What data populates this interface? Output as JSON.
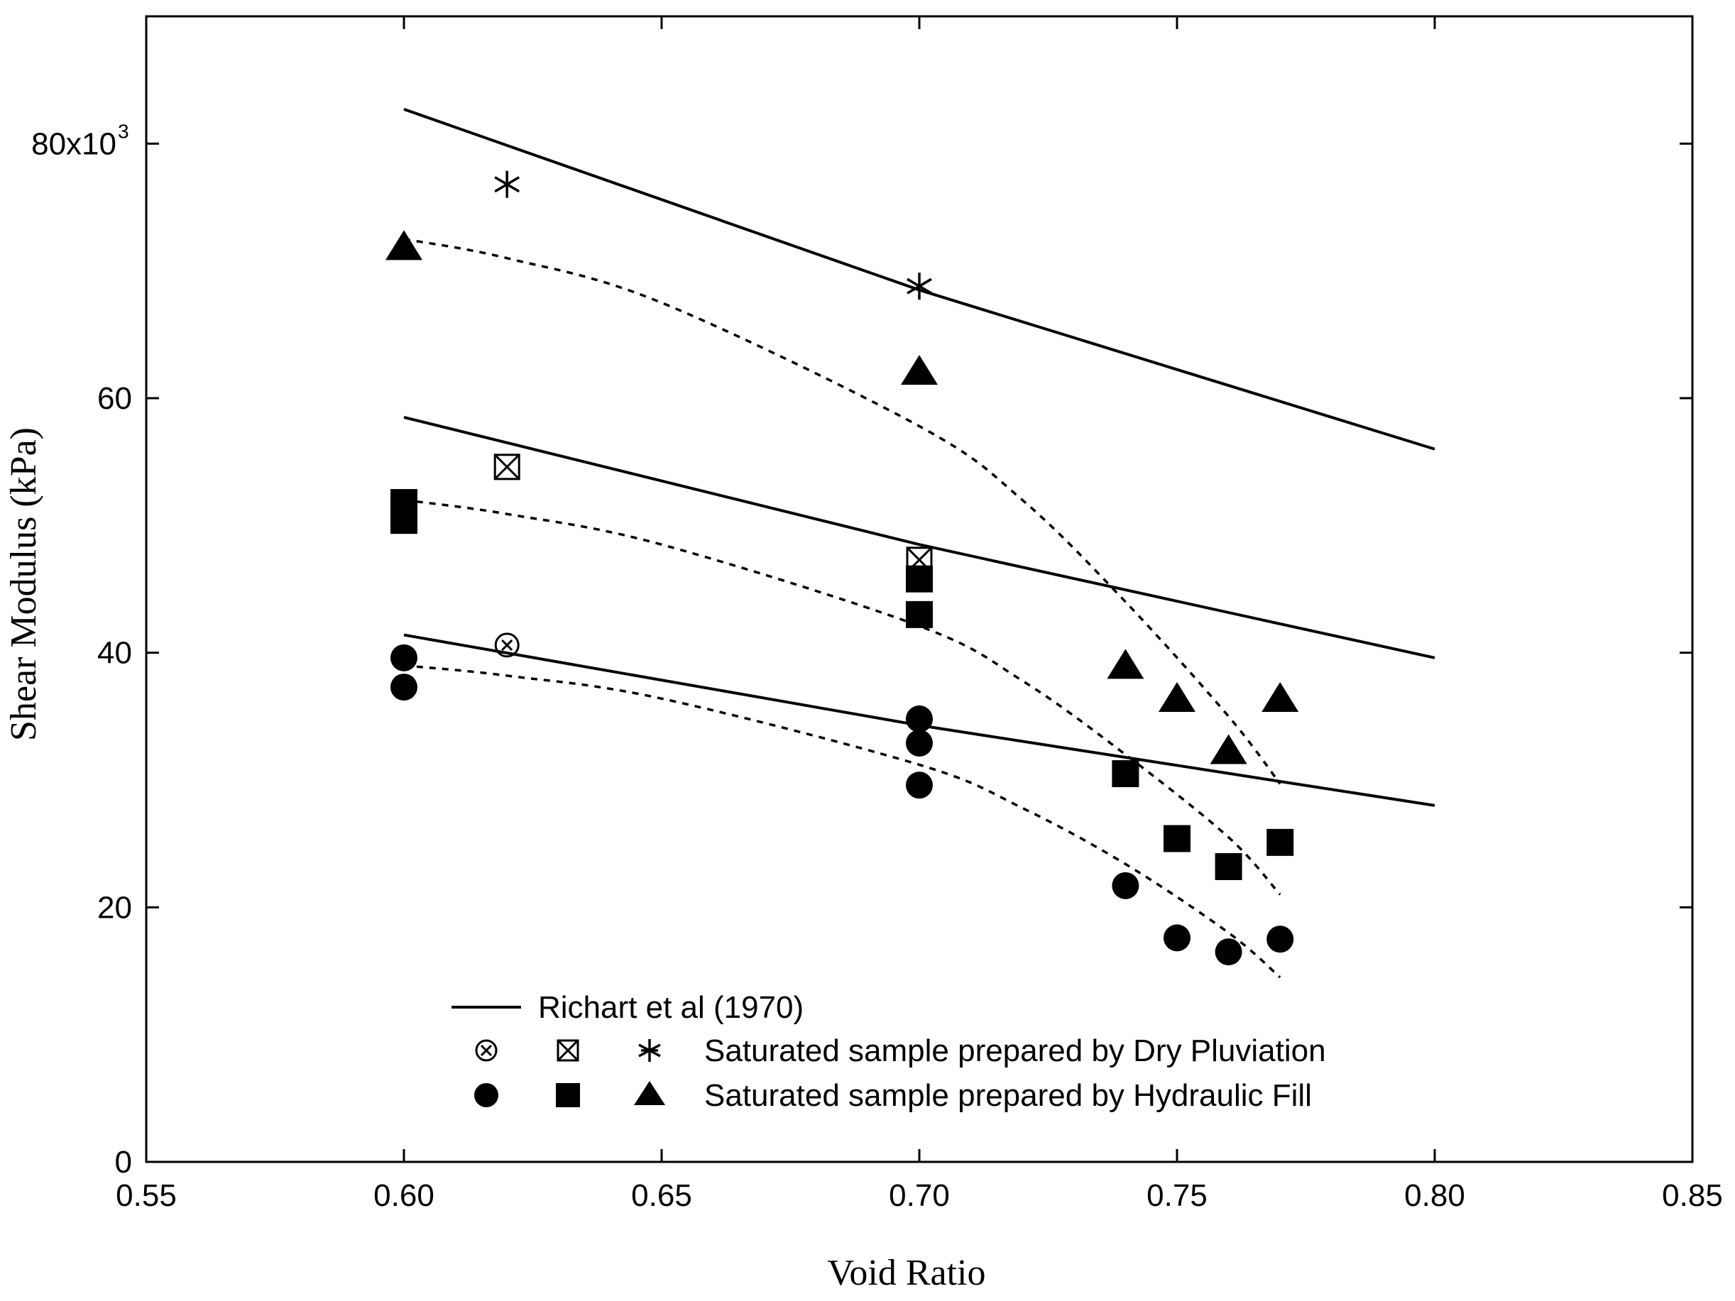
{
  "chart_data": {
    "type": "scatter",
    "title": "",
    "xlabel": "Void Ratio",
    "ylabel": "Shear Modulus (kPa)",
    "xlim": [
      0.55,
      0.85
    ],
    "ylim": [
      0,
      90000
    ],
    "x_ticks": [
      {
        "value": 0.55,
        "label": "0.55"
      },
      {
        "value": 0.6,
        "label": "0.60"
      },
      {
        "value": 0.65,
        "label": "0.65"
      },
      {
        "value": 0.7,
        "label": "0.70"
      },
      {
        "value": 0.75,
        "label": "0.75"
      },
      {
        "value": 0.8,
        "label": "0.80"
      },
      {
        "value": 0.85,
        "label": "0.85"
      }
    ],
    "y_ticks": [
      {
        "value": 0,
        "label": "0"
      },
      {
        "value": 20000,
        "label": "20"
      },
      {
        "value": 40000,
        "label": "40"
      },
      {
        "value": 60000,
        "label": "60"
      },
      {
        "value": 80000,
        "label": "80x10",
        "superscript": "3"
      }
    ],
    "legend": {
      "placement": "bottom-center",
      "line_entry": "Richart et al (1970)",
      "dry_entry": "Saturated sample prepared by Dry Pluviation",
      "hydraulic_entry": "Saturated sample prepared by Hydraulic Fill"
    },
    "richart_lines": [
      {
        "name": "Richart upper",
        "x": [
          0.6,
          0.7,
          0.8
        ],
        "y": [
          82700,
          68500,
          56000
        ]
      },
      {
        "name": "Richart middle",
        "x": [
          0.6,
          0.7,
          0.8
        ],
        "y": [
          58500,
          48500,
          39600
        ]
      },
      {
        "name": "Richart lower",
        "x": [
          0.6,
          0.7,
          0.8
        ],
        "y": [
          41400,
          34300,
          28000
        ]
      }
    ],
    "trend_lines": [
      {
        "name": "Hydraulic Fill triangles trend",
        "x": [
          0.6,
          0.62,
          0.65,
          0.7,
          0.72,
          0.74,
          0.76,
          0.77
        ],
        "y": [
          72500,
          71000,
          67500,
          57800,
          52000,
          44000,
          35000,
          29700
        ]
      },
      {
        "name": "Hydraulic Fill squares trend",
        "x": [
          0.6,
          0.62,
          0.65,
          0.7,
          0.72,
          0.74,
          0.76,
          0.77
        ],
        "y": [
          52000,
          50900,
          48500,
          42100,
          37800,
          32000,
          25500,
          21000
        ]
      },
      {
        "name": "Hydraulic Fill circles trend",
        "x": [
          0.6,
          0.62,
          0.65,
          0.7,
          0.72,
          0.74,
          0.76,
          0.77
        ],
        "y": [
          39000,
          38200,
          36400,
          31200,
          27800,
          23400,
          18000,
          14500
        ]
      }
    ],
    "series": [
      {
        "name": "Dry Pluviation - circle",
        "marker": "circle-cross",
        "points": [
          {
            "x": 0.62,
            "y": 40600
          }
        ]
      },
      {
        "name": "Dry Pluviation - square",
        "marker": "square-cross",
        "points": [
          {
            "x": 0.62,
            "y": 54600
          },
          {
            "x": 0.7,
            "y": 47300
          }
        ]
      },
      {
        "name": "Dry Pluviation - star",
        "marker": "asterisk",
        "points": [
          {
            "x": 0.62,
            "y": 76800
          },
          {
            "x": 0.7,
            "y": 68800
          }
        ]
      },
      {
        "name": "Hydraulic Fill - circle",
        "marker": "filled-circle",
        "points": [
          {
            "x": 0.6,
            "y": 39600
          },
          {
            "x": 0.6,
            "y": 37300
          },
          {
            "x": 0.7,
            "y": 34800
          },
          {
            "x": 0.7,
            "y": 32900
          },
          {
            "x": 0.7,
            "y": 29600
          },
          {
            "x": 0.74,
            "y": 21700
          },
          {
            "x": 0.75,
            "y": 17600
          },
          {
            "x": 0.76,
            "y": 16500
          },
          {
            "x": 0.77,
            "y": 17500
          }
        ]
      },
      {
        "name": "Hydraulic Fill - square",
        "marker": "filled-square",
        "points": [
          {
            "x": 0.6,
            "y": 51800
          },
          {
            "x": 0.6,
            "y": 50400
          },
          {
            "x": 0.7,
            "y": 45800
          },
          {
            "x": 0.7,
            "y": 43000
          },
          {
            "x": 0.74,
            "y": 30500
          },
          {
            "x": 0.75,
            "y": 25400
          },
          {
            "x": 0.76,
            "y": 23200
          },
          {
            "x": 0.77,
            "y": 25100
          }
        ]
      },
      {
        "name": "Hydraulic Fill - triangle",
        "marker": "filled-triangle",
        "points": [
          {
            "x": 0.6,
            "y": 71800
          },
          {
            "x": 0.7,
            "y": 62000
          },
          {
            "x": 0.74,
            "y": 38900
          },
          {
            "x": 0.75,
            "y": 36300
          },
          {
            "x": 0.76,
            "y": 32200
          },
          {
            "x": 0.77,
            "y": 36300
          }
        ]
      }
    ]
  }
}
